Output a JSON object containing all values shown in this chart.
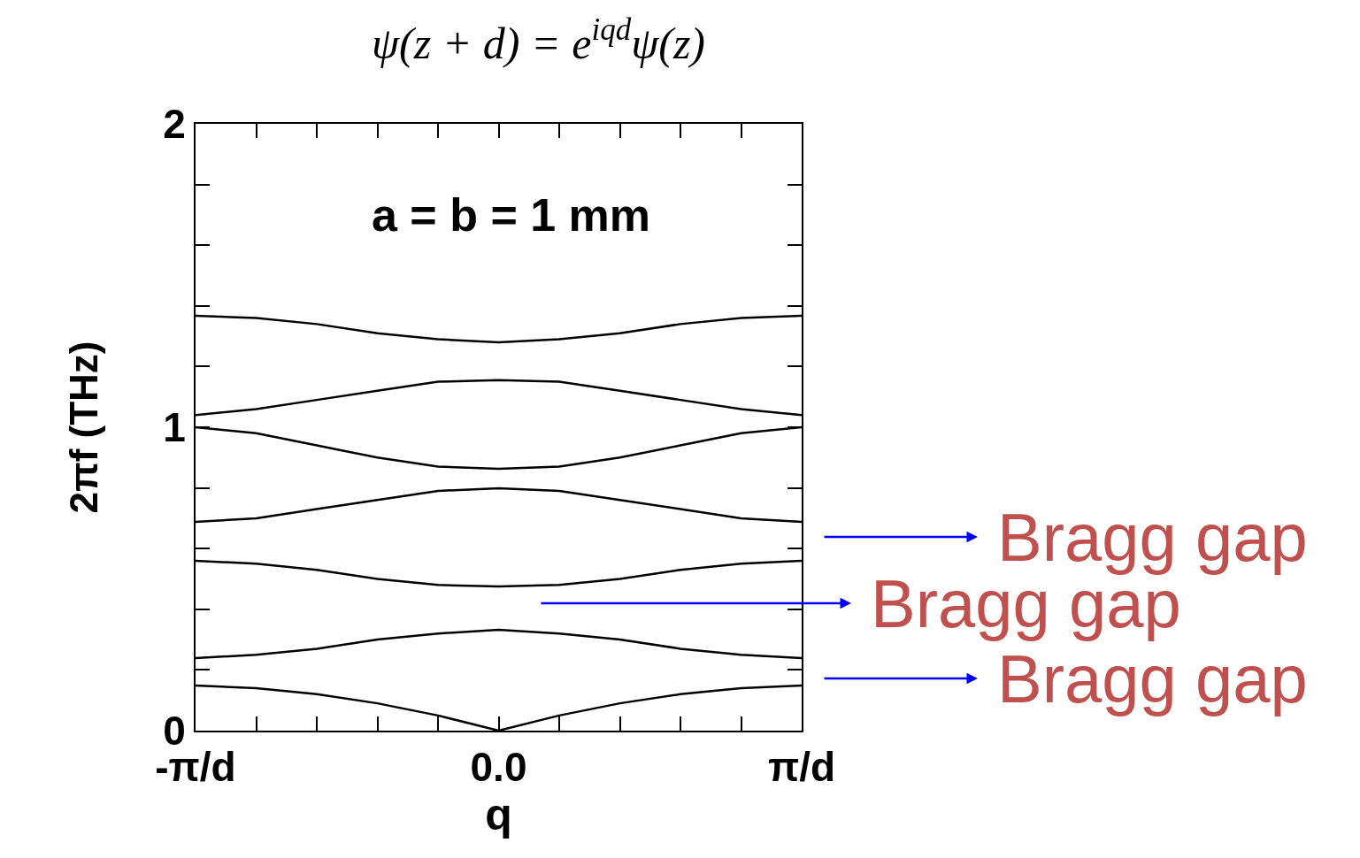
{
  "chart_data": {
    "type": "line",
    "title": "ψ(z + d) = e$^{iqd}$ψ(z)",
    "xlabel": "q",
    "ylabel": "2πf (THz)",
    "categories": [
      "-π/d",
      null,
      null,
      null,
      null,
      "0.0",
      null,
      null,
      null,
      null,
      "π/d"
    ],
    "series": [
      {
        "color": "#000000",
        "values": [
          0.149,
          0.14,
          0.12,
          0.09,
          0.05,
          0,
          0.05,
          0.09,
          0.12,
          0.14,
          0.149
        ]
      },
      {
        "color": "#000000",
        "values": [
          0.239,
          0.25,
          0.27,
          0.3,
          0.32,
          0.332,
          0.32,
          0.3,
          0.27,
          0.25,
          0.239
        ]
      },
      {
        "color": "#000000",
        "values": [
          0.56,
          0.55,
          0.53,
          0.5,
          0.48,
          0.475,
          0.48,
          0.5,
          0.53,
          0.55,
          0.56
        ]
      },
      {
        "color": "#000000",
        "values": [
          0.688,
          0.7,
          0.73,
          0.76,
          0.79,
          0.799,
          0.79,
          0.76,
          0.73,
          0.7,
          0.688
        ]
      },
      {
        "color": "#000000",
        "values": [
          1.0,
          0.98,
          0.94,
          0.9,
          0.87,
          0.863,
          0.87,
          0.9,
          0.94,
          0.98,
          1.0
        ]
      },
      {
        "color": "#000000",
        "values": [
          1.04,
          1.06,
          1.09,
          1.12,
          1.15,
          1.155,
          1.15,
          1.12,
          1.09,
          1.06,
          1.04
        ]
      },
      {
        "color": "#000000",
        "values": [
          1.367,
          1.36,
          1.34,
          1.31,
          1.29,
          1.28,
          1.29,
          1.31,
          1.34,
          1.36,
          1.367
        ]
      }
    ],
    "ylim": [
      0,
      2
    ],
    "yticks": [
      0,
      {
        "value": 0.2,
        "label": null
      },
      {
        "value": 0.4,
        "label": null
      },
      {
        "value": 0.6,
        "label": null
      },
      {
        "value": 0.8,
        "label": null
      },
      1,
      {
        "value": 1.2,
        "label": null
      },
      {
        "value": 1.4,
        "label": null
      },
      {
        "value": 1.6,
        "label": null
      },
      {
        "value": 1.8,
        "label": null
      },
      2
    ],
    "grid": false,
    "marker": "none",
    "line_style": "solid",
    "annotations": [
      "a = b = 1 mm",
      "Bragg gap",
      "Bragg gap",
      "Bragg gap"
    ]
  }
}
